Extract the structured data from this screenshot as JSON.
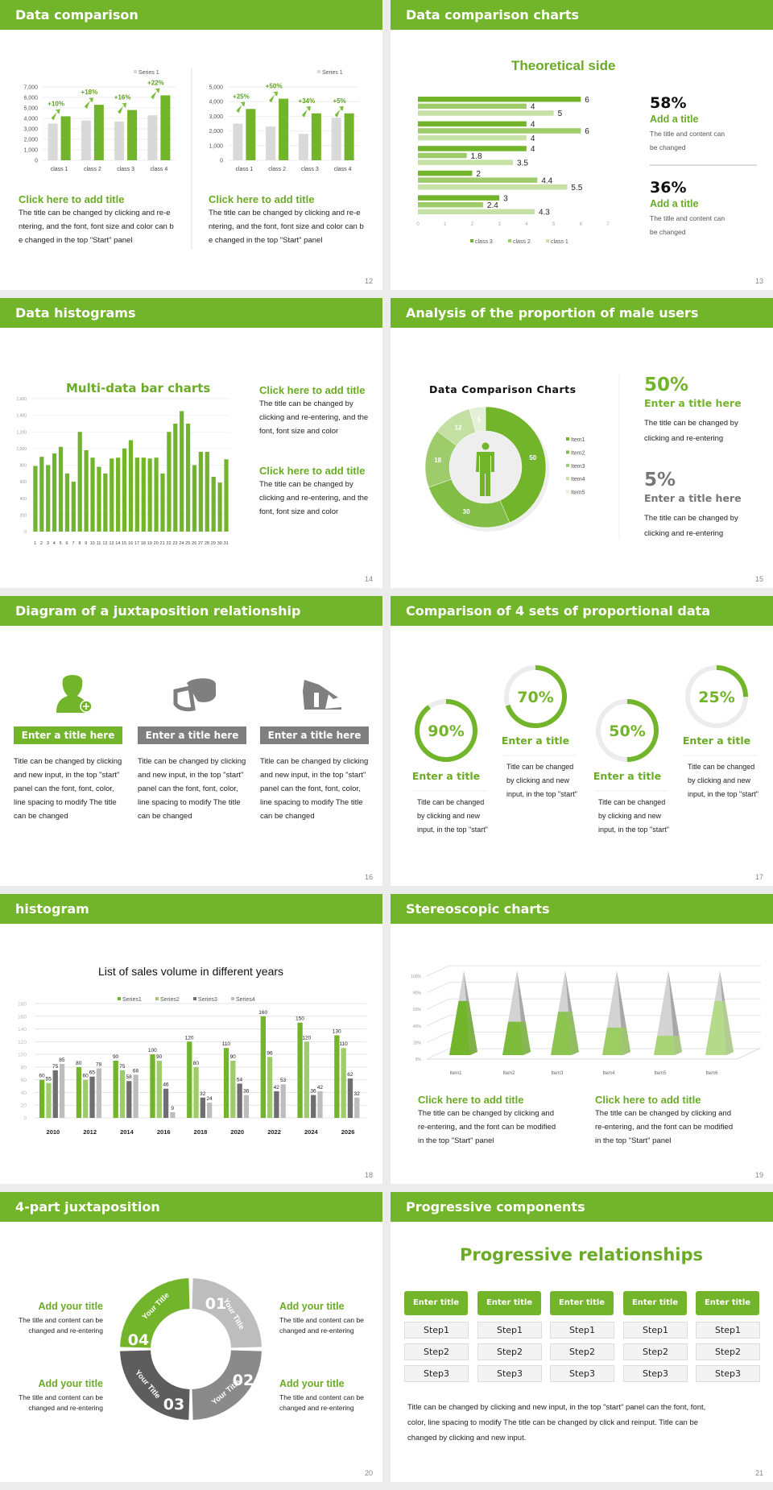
{
  "colors": {
    "accent": "#72b42a",
    "mid_green": "#8cc44f",
    "light_green": "#b5d98b",
    "grey_bar": "#d9d9d9",
    "dark_grey": "#7f7f7f"
  },
  "slides": [
    {
      "number": "12",
      "title": "Data comparison",
      "charts": [
        {
          "legend": "Series 1",
          "ymax": 7000,
          "step": 1000,
          "tick_labels": [
            "0",
            "1,000",
            "2,000",
            "3,000",
            "4,000",
            "5,000",
            "6,000",
            "7,000"
          ],
          "categories": [
            "class 1",
            "class 2",
            "class 3",
            "class 4"
          ],
          "grey": [
            3500,
            3800,
            3700,
            4300
          ],
          "green": [
            4200,
            5300,
            4800,
            6200
          ],
          "growth": [
            "+10%",
            "+18%",
            "+16%",
            "+22%"
          ]
        },
        {
          "legend": "Series 1",
          "ymax": 5000,
          "step": 1000,
          "tick_labels": [
            "0",
            "1,000",
            "2,000",
            "3,000",
            "4,000",
            "5,000"
          ],
          "categories": [
            "class 1",
            "class 2",
            "class 3",
            "class 4"
          ],
          "grey": [
            2500,
            2300,
            1800,
            2900
          ],
          "green": [
            3500,
            4200,
            3200,
            3200
          ],
          "growth": [
            "+25%",
            "+50%",
            "+34%",
            "+5%"
          ]
        }
      ],
      "blocks": [
        {
          "title": "Click here to add title",
          "lines": [
            "The title can be changed by clicking and re-e",
            "ntering, and the font, font size and color can b",
            "e changed in the top \"Start\" panel"
          ]
        },
        {
          "title": "Click here to add title",
          "lines": [
            "The title can be changed by clicking and re-e",
            "ntering, and the font, font size and color can b",
            "e changed in the top \"Start\" panel"
          ]
        }
      ]
    },
    {
      "number": "13",
      "title": "Data comparison charts",
      "chart_title": "Theoretical side",
      "chart": {
        "xmax": 7,
        "ticks": [
          "0",
          "1",
          "2",
          "3",
          "4",
          "5",
          "6",
          "7"
        ],
        "series": [
          {
            "name": "class 3",
            "color": "#72b42a"
          },
          {
            "name": "class 2",
            "color": "#9fcc6b"
          },
          {
            "name": "class 1",
            "color": "#c6e0a6"
          }
        ],
        "groups": [
          [
            6,
            4,
            5
          ],
          [
            4,
            6,
            4
          ],
          [
            4,
            1.8,
            3.5
          ],
          [
            2,
            4.4,
            5.5
          ],
          [
            3,
            2.4,
            4.3
          ]
        ]
      },
      "stats": [
        {
          "value": "58%",
          "title": "Add a title",
          "lines": [
            "The title and content can",
            "be changed"
          ]
        },
        {
          "value": "36%",
          "title": "Add a title",
          "lines": [
            "The title and content can",
            "be changed"
          ]
        }
      ]
    },
    {
      "number": "14",
      "title": "Data histograms",
      "chart_title": "Multi-data bar charts",
      "chart": {
        "ymax": 1600,
        "ticks": [
          "0",
          "200",
          "400",
          "600",
          "800",
          "1,000",
          "1,200",
          "1,400",
          "1,600"
        ],
        "categories": [
          "1",
          "2",
          "3",
          "4",
          "5",
          "6",
          "7",
          "8",
          "9",
          "10",
          "11",
          "12",
          "13",
          "14",
          "15",
          "16",
          "17",
          "18",
          "19",
          "20",
          "21",
          "22",
          "23",
          "24",
          "25",
          "26",
          "27",
          "28",
          "29",
          "30",
          "31"
        ],
        "values": [
          790,
          900,
          800,
          940,
          1020,
          700,
          600,
          1200,
          980,
          890,
          780,
          700,
          880,
          890,
          1000,
          1100,
          890,
          890,
          880,
          890,
          700,
          1200,
          1300,
          1450,
          1300,
          800,
          960,
          960,
          660,
          590,
          870
        ]
      },
      "blocks": [
        {
          "title": "Click here to add title",
          "lines": [
            "The title can be changed by",
            "clicking and re-entering, and the",
            "font, font size and color"
          ]
        },
        {
          "title": "Click here to add title",
          "lines": [
            "The title can be changed by",
            "clicking and re-entering, and the",
            "font, font size and color"
          ]
        }
      ]
    },
    {
      "number": "15",
      "title": "Analysis of the proportion of male users",
      "chart_title": "Data Comparison Charts",
      "chart": {
        "items": [
          "Item1",
          "Item2",
          "Item3",
          "Item4",
          "Item5"
        ],
        "values": [
          50,
          30,
          18,
          12,
          5
        ],
        "colors": [
          "#72b42a",
          "#82bd45",
          "#9fcc6b",
          "#c3dfa2",
          "#e4f0d6"
        ]
      },
      "stats": [
        {
          "value": "50%",
          "title": "Enter a title here",
          "lines": [
            "The title can be changed by",
            "clicking and re-entering"
          ],
          "color": "#72b42a"
        },
        {
          "value": "5%",
          "title": "Enter a title here",
          "lines": [
            "The title can be changed by",
            "clicking and re-entering"
          ],
          "color": "#777777"
        }
      ]
    },
    {
      "number": "16",
      "title": "Diagram of a juxtaposition relationship",
      "columns": [
        {
          "icon": "user-add-icon",
          "label": "Enter a title here",
          "color": "#72b42a",
          "lines": [
            "Title can be changed by clicking",
            "and new input, in the top \"start\"",
            "panel can the font, font, color,",
            "line spacing to modify The title",
            "can be changed"
          ]
        },
        {
          "icon": "pie-chart-3d-icon",
          "label": "Enter a title here",
          "color": "#7f7f7f",
          "lines": [
            "Title can be changed by clicking",
            "and new input, in the top \"start\"",
            "panel can the font, font, color,",
            "line spacing to modify The title",
            "can be changed"
          ]
        },
        {
          "icon": "building-icon",
          "label": "Enter a title here",
          "color": "#7f7f7f",
          "lines": [
            "Title can be changed by clicking",
            "and new input, in the top \"start\"",
            "panel can the font, font, color,",
            "line spacing to modify The title",
            "can be changed"
          ]
        }
      ]
    },
    {
      "number": "17",
      "title": "Comparison of 4 sets of proportional data",
      "rings": [
        {
          "percent": 90,
          "label": "90%",
          "title": "Enter a title",
          "lines": [
            "Title can be changed",
            "by clicking and new",
            "input, in the top \"start\""
          ]
        },
        {
          "percent": 70,
          "label": "70%",
          "title": "Enter a title",
          "lines": [
            "Title can be changed",
            "by clicking and new",
            "input, in the top \"start\""
          ]
        },
        {
          "percent": 50,
          "label": "50%",
          "title": "Enter a title",
          "lines": [
            "Title can be changed",
            "by clicking and new",
            "input, in the top \"start\""
          ]
        },
        {
          "percent": 25,
          "label": "25%",
          "title": "Enter a title",
          "lines": [
            "Title can be changed",
            "by clicking and new",
            "input, in the top \"start\""
          ]
        }
      ]
    },
    {
      "number": "18",
      "title": "histogram",
      "chart_title": "List of sales volume in different years",
      "chart": {
        "ymax": 180,
        "ticks": [
          "0",
          "20",
          "40",
          "60",
          "80",
          "100",
          "120",
          "140",
          "160",
          "180"
        ],
        "categories": [
          "2010",
          "2012",
          "2014",
          "2016",
          "2018",
          "2020",
          "2022",
          "2024",
          "2026"
        ],
        "series": [
          {
            "name": "Series1",
            "color": "#72b42a",
            "values": [
              60,
              80,
              90,
              100,
              120,
              110,
              160,
              150,
              130
            ]
          },
          {
            "name": "Series2",
            "color": "#9fcc6b",
            "values": [
              55,
              60,
              75,
              90,
              80,
              90,
              96,
              120,
              110
            ]
          },
          {
            "name": "Series3",
            "color": "#6f6f6f",
            "values": [
              75,
              65,
              58,
              46,
              32,
              54,
              42,
              36,
              62
            ]
          },
          {
            "name": "Series4",
            "color": "#bdbdbd",
            "values": [
              85,
              78,
              68,
              9,
              24,
              36,
              53,
              42,
              32
            ]
          }
        ]
      }
    },
    {
      "number": "19",
      "title": "Stereoscopic charts",
      "chart": {
        "ticks": [
          "0%",
          "20%",
          "40%",
          "60%",
          "80%",
          "100%"
        ],
        "categories": [
          "Item1",
          "Item2",
          "Item3",
          "Item4",
          "Item5",
          "Item6"
        ],
        "values": [
          70,
          45,
          57,
          38,
          28,
          70
        ],
        "colors": [
          "#72b42a",
          "#7cbc3a",
          "#8cc44f",
          "#9ccd63",
          "#a9d476",
          "#b5da8a"
        ]
      },
      "blocks": [
        {
          "title": "Click here to add title",
          "lines": [
            "The title can be changed by clicking and",
            "re-entering, and the font can be modified",
            "in the top \"Start\" panel"
          ]
        },
        {
          "title": "Click here to add title",
          "lines": [
            "The title can be changed by clicking and",
            "re-entering, and the font can be modified",
            "in the top \"Start\" panel"
          ]
        }
      ]
    },
    {
      "number": "20",
      "title": "4-part juxtaposition",
      "segments": [
        {
          "num": "01",
          "label": "Your Title",
          "color": "#bdbdbd"
        },
        {
          "num": "02",
          "label": "Your Title",
          "color": "#8a8a8a"
        },
        {
          "num": "03",
          "label": "Your Title",
          "color": "#5d5d5d"
        },
        {
          "num": "04",
          "label": "Your Title",
          "color": "#72b42a"
        }
      ],
      "blocks": [
        {
          "title": "Add your title",
          "lines": [
            "The title and content can be",
            "changed and re-entering"
          ]
        },
        {
          "title": "Add your title",
          "lines": [
            "The title and content can be",
            "changed and re-entering"
          ]
        },
        {
          "title": "Add your title",
          "lines": [
            "The title and content can be",
            "changed and re-entering"
          ]
        },
        {
          "title": "Add your title",
          "lines": [
            "The title and content can be",
            "changed and re-entering"
          ]
        }
      ]
    },
    {
      "number": "21",
      "title": "Progressive components",
      "heading": "Progressive relationships",
      "columns": [
        {
          "label": "Enter title",
          "steps": [
            "Step1",
            "Step2",
            "Step3"
          ]
        },
        {
          "label": "Enter title",
          "steps": [
            "Step1",
            "Step2",
            "Step3"
          ]
        },
        {
          "label": "Enter title",
          "steps": [
            "Step1",
            "Step2",
            "Step3"
          ]
        },
        {
          "label": "Enter title",
          "steps": [
            "Step1",
            "Step2",
            "Step3"
          ]
        },
        {
          "label": "Enter title",
          "steps": [
            "Step1",
            "Step2",
            "Step3"
          ]
        }
      ],
      "lines": [
        "Title can be changed by clicking and new input, in the top \"start\" panel can the font, font,",
        "color, line spacing to modify The title can be changed by click and reinput. Title can be",
        "changed by clicking and new input."
      ]
    }
  ]
}
